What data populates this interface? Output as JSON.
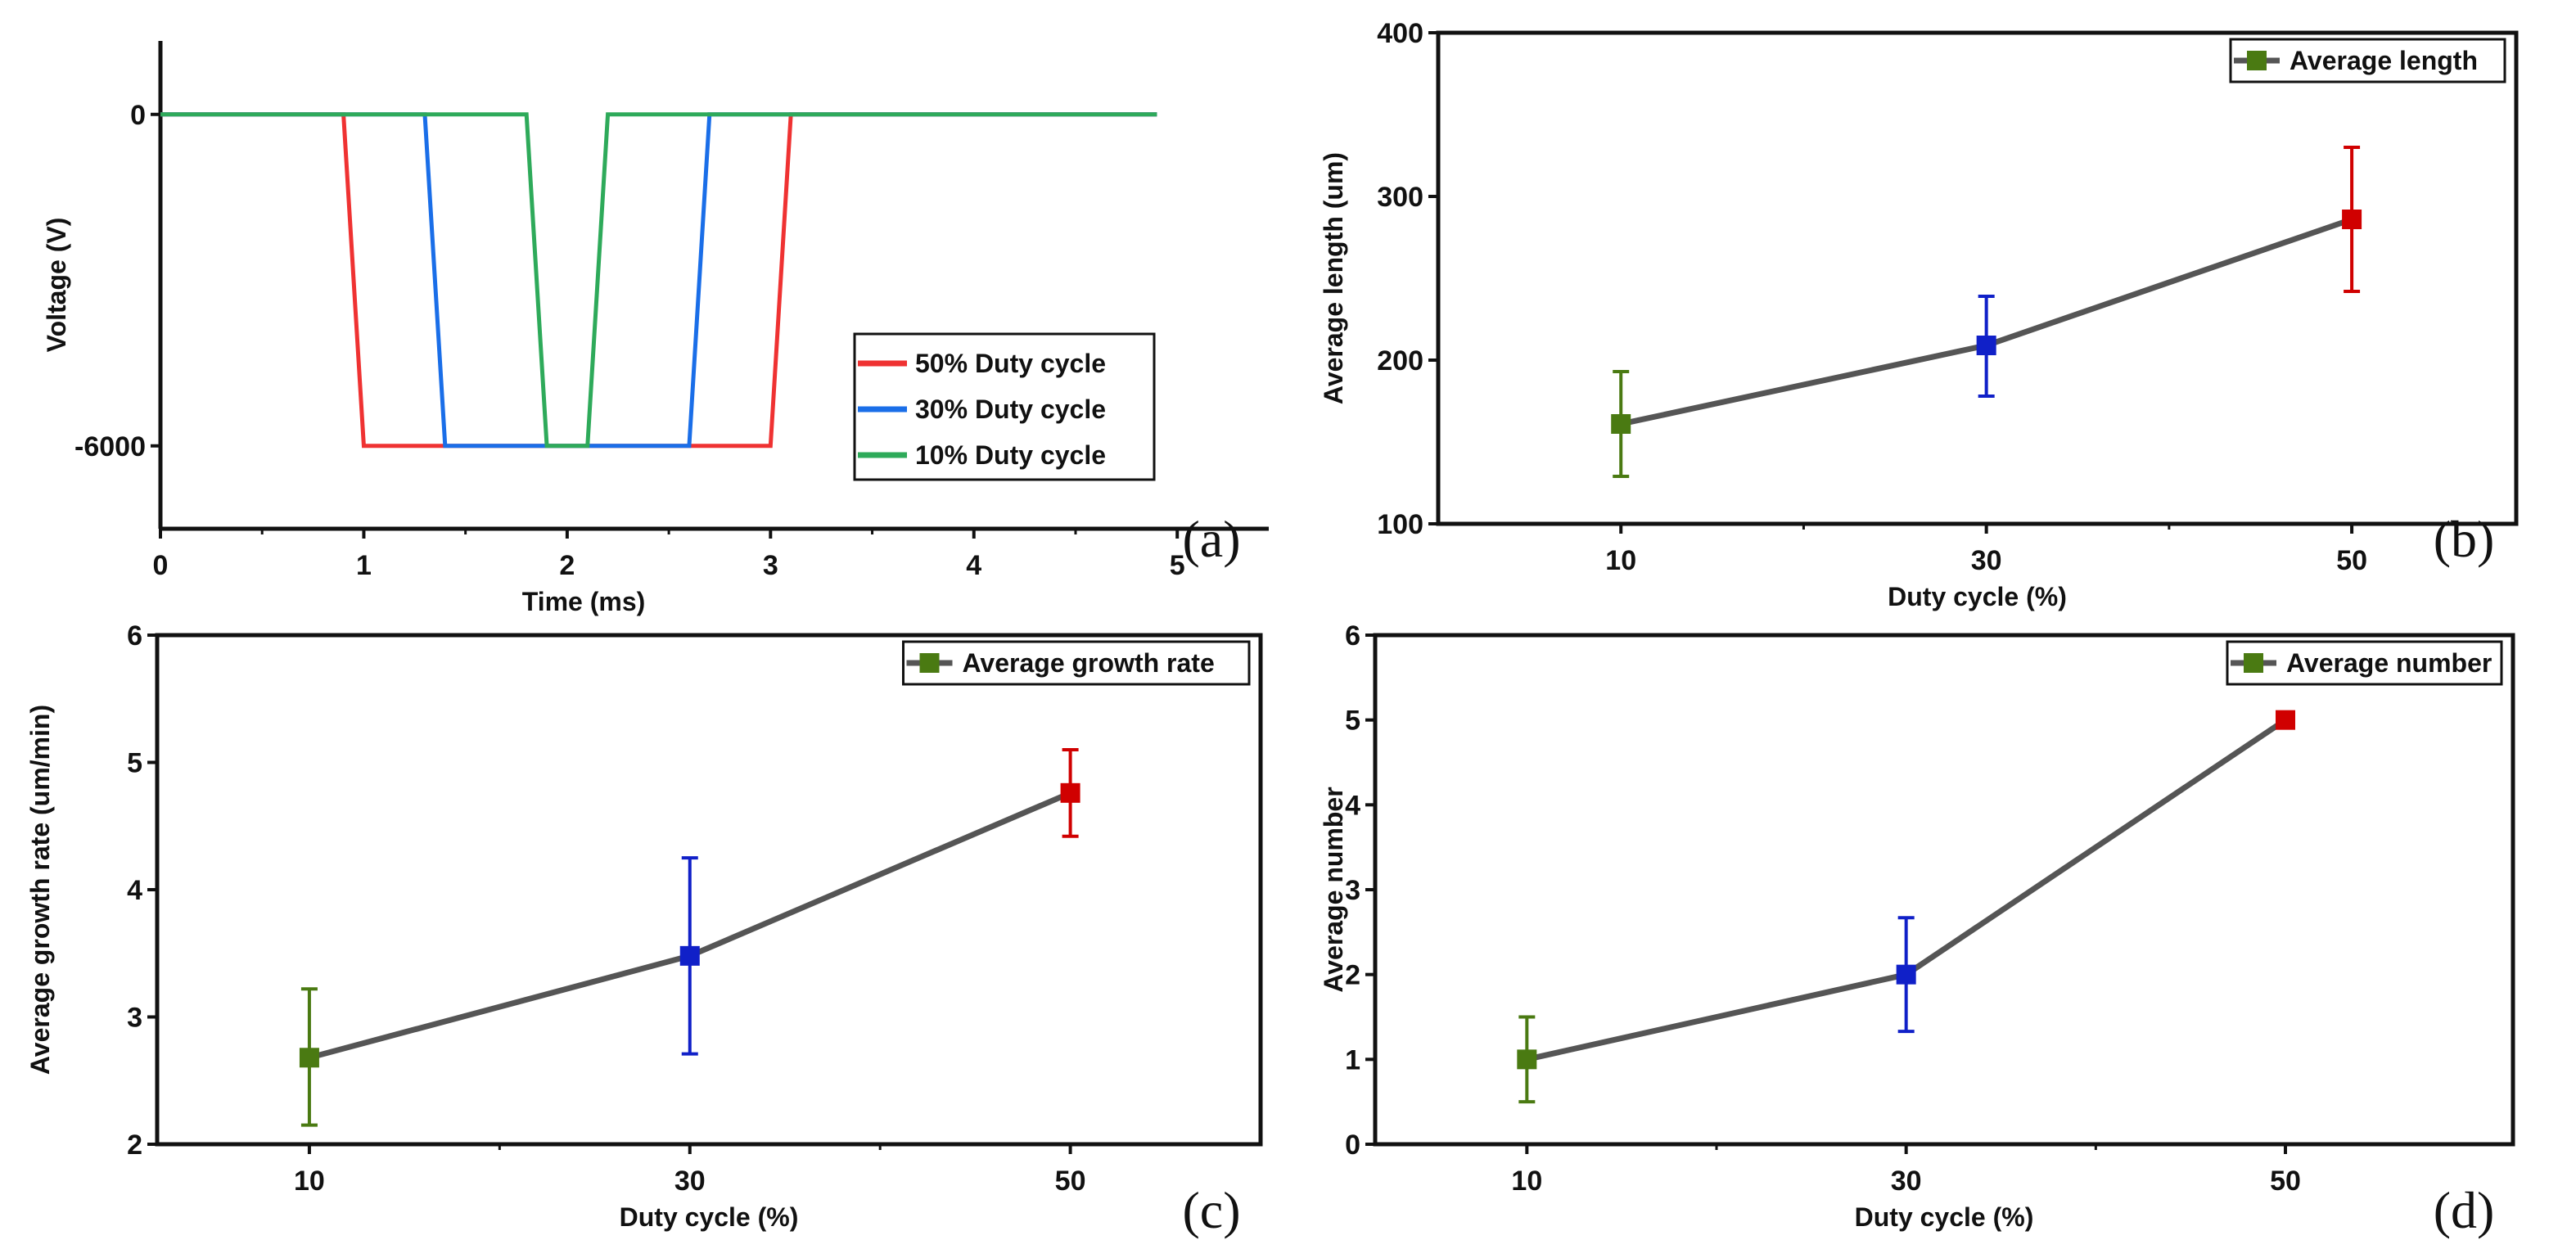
{
  "chart_data": [
    {
      "id": "a",
      "panel_label": "(a)",
      "type": "line",
      "xlabel": "Time (ms)",
      "ylabel": "Voltage (V)",
      "xlim": [
        0,
        5.45
      ],
      "ylim": [
        -7500,
        1330
      ],
      "xticks": [
        0,
        1,
        2,
        3,
        4,
        5
      ],
      "xtick_labels": [
        "0",
        "1",
        "2",
        "3",
        "4",
        "5"
      ],
      "yticks": [
        0,
        -6000
      ],
      "ytick_labels": [
        "0",
        "-6000"
      ],
      "legend_position": "bottom-right",
      "series": [
        {
          "name": "50% Duty cycle",
          "color": "#ef3232",
          "x": [
            0,
            0.9,
            1.0,
            3.0,
            3.1,
            4.9
          ],
          "y": [
            0,
            0,
            -6000,
            -6000,
            0,
            0
          ]
        },
        {
          "name": "30% Duty cycle",
          "color": "#1a6ee8",
          "x": [
            0,
            1.3,
            1.4,
            2.6,
            2.7,
            4.9
          ],
          "y": [
            0,
            0,
            -6000,
            -6000,
            0,
            0
          ]
        },
        {
          "name": "10% Duty cycle",
          "color": "#2eaa5a",
          "x": [
            0,
            1.8,
            1.9,
            2.1,
            2.2,
            4.9
          ],
          "y": [
            0,
            0,
            -6000,
            -6000,
            0,
            0
          ]
        }
      ]
    },
    {
      "id": "b",
      "panel_label": "(b)",
      "type": "line",
      "xlabel": "Duty cycle (%)",
      "ylabel": "Average length (um)",
      "xlim": [
        0,
        59
      ],
      "ylim": [
        100,
        400
      ],
      "xticks": [
        10,
        30,
        50
      ],
      "xtick_labels": [
        "10",
        "30",
        "50"
      ],
      "yticks": [
        100,
        200,
        300,
        400
      ],
      "ytick_labels": [
        "100",
        "200",
        "300",
        "400"
      ],
      "legend_position": "top-right",
      "series": [
        {
          "name": "Average length",
          "x": [
            10,
            30,
            50
          ],
          "y": [
            161,
            209,
            286
          ],
          "err_low": [
            129,
            178,
            242
          ],
          "err_high": [
            193,
            239,
            330
          ],
          "point_colors": [
            "#4a7a12",
            "#1020c8",
            "#d00000"
          ]
        }
      ]
    },
    {
      "id": "c",
      "panel_label": "(c)",
      "type": "line",
      "xlabel": "Duty cycle (%)",
      "ylabel": "Average growth rate (um/min)",
      "xlim": [
        2,
        60
      ],
      "ylim": [
        2,
        6
      ],
      "xticks": [
        10,
        30,
        50
      ],
      "xtick_labels": [
        "10",
        "30",
        "50"
      ],
      "yticks": [
        2,
        3,
        4,
        5,
        6
      ],
      "ytick_labels": [
        "2",
        "3",
        "4",
        "5",
        "6"
      ],
      "legend_position": "top-right",
      "series": [
        {
          "name": "Average growth rate",
          "x": [
            10,
            30,
            50
          ],
          "y": [
            2.68,
            3.48,
            4.76
          ],
          "err_low": [
            2.15,
            2.71,
            4.42
          ],
          "err_high": [
            3.22,
            4.25,
            5.1
          ],
          "point_colors": [
            "#4a7a12",
            "#1020c8",
            "#d00000"
          ]
        }
      ]
    },
    {
      "id": "d",
      "panel_label": "(d)",
      "type": "line",
      "xlabel": "Duty cycle (%)",
      "ylabel": "Average number",
      "xlim": [
        2,
        62
      ],
      "ylim": [
        0,
        6
      ],
      "xticks": [
        10,
        30,
        50
      ],
      "xtick_labels": [
        "10",
        "30",
        "50"
      ],
      "yticks": [
        0,
        1,
        2,
        3,
        4,
        5,
        6
      ],
      "ytick_labels": [
        "0",
        "1",
        "2",
        "3",
        "4",
        "5",
        "6"
      ],
      "legend_position": "top-right",
      "series": [
        {
          "name": "Average number",
          "x": [
            10,
            30,
            50
          ],
          "y": [
            1,
            2,
            5
          ],
          "err_low": [
            0.5,
            1.33,
            5
          ],
          "err_high": [
            1.5,
            2.67,
            5
          ],
          "point_colors": [
            "#4a7a12",
            "#1020c8",
            "#d00000"
          ]
        }
      ]
    }
  ]
}
